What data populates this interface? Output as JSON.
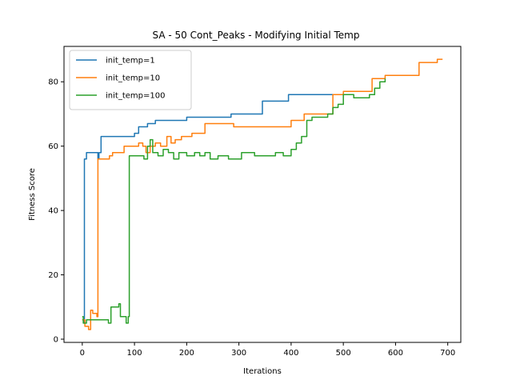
{
  "chart_data": {
    "type": "line",
    "title": "SA - 50 Cont_Peaks - Modifying Initial Temp",
    "xlabel": "Iterations",
    "ylabel": "Fitness Score",
    "xlim": [
      -35,
      725
    ],
    "ylim": [
      -1,
      91
    ],
    "xticks": [
      0,
      100,
      200,
      300,
      400,
      500,
      600,
      700
    ],
    "yticks": [
      0,
      20,
      40,
      60,
      80
    ],
    "grid": false,
    "legend_position": "upper left",
    "series": [
      {
        "name": "init_temp=1",
        "color": "#1f77b4",
        "step": true,
        "points": [
          [
            0,
            6
          ],
          [
            3,
            5
          ],
          [
            4,
            56
          ],
          [
            8,
            58
          ],
          [
            30,
            56
          ],
          [
            32,
            58
          ],
          [
            36,
            63
          ],
          [
            100,
            64
          ],
          [
            108,
            66
          ],
          [
            125,
            67
          ],
          [
            140,
            68
          ],
          [
            200,
            69
          ],
          [
            285,
            70
          ],
          [
            345,
            74
          ],
          [
            395,
            76
          ],
          [
            480,
            76
          ],
          [
            510,
            76
          ]
        ]
      },
      {
        "name": "init_temp=10",
        "color": "#ff7f0e",
        "step": true,
        "points": [
          [
            0,
            6
          ],
          [
            5,
            4
          ],
          [
            12,
            3
          ],
          [
            16,
            9
          ],
          [
            20,
            8
          ],
          [
            28,
            7
          ],
          [
            30,
            56
          ],
          [
            40,
            56
          ],
          [
            52,
            57
          ],
          [
            58,
            58
          ],
          [
            80,
            60
          ],
          [
            100,
            60
          ],
          [
            108,
            61
          ],
          [
            116,
            60
          ],
          [
            122,
            58
          ],
          [
            130,
            60
          ],
          [
            140,
            61
          ],
          [
            150,
            60
          ],
          [
            162,
            63
          ],
          [
            170,
            61
          ],
          [
            178,
            62
          ],
          [
            190,
            63
          ],
          [
            210,
            64
          ],
          [
            235,
            67
          ],
          [
            270,
            67
          ],
          [
            290,
            66
          ],
          [
            400,
            68
          ],
          [
            425,
            70
          ],
          [
            480,
            76
          ],
          [
            500,
            77
          ],
          [
            555,
            81
          ],
          [
            580,
            82
          ],
          [
            595,
            82
          ],
          [
            645,
            86
          ],
          [
            665,
            86
          ],
          [
            680,
            87
          ],
          [
            690,
            87
          ]
        ]
      },
      {
        "name": "init_temp=100",
        "color": "#2ca02c",
        "step": true,
        "points": [
          [
            0,
            7
          ],
          [
            2,
            5
          ],
          [
            8,
            6
          ],
          [
            30,
            6
          ],
          [
            35,
            6
          ],
          [
            50,
            5
          ],
          [
            55,
            10
          ],
          [
            70,
            11
          ],
          [
            73,
            7
          ],
          [
            84,
            5
          ],
          [
            88,
            7
          ],
          [
            90,
            57
          ],
          [
            110,
            57
          ],
          [
            118,
            56
          ],
          [
            125,
            60
          ],
          [
            130,
            62
          ],
          [
            135,
            58
          ],
          [
            145,
            57
          ],
          [
            155,
            59
          ],
          [
            165,
            58
          ],
          [
            175,
            56
          ],
          [
            185,
            58
          ],
          [
            200,
            57
          ],
          [
            215,
            58
          ],
          [
            225,
            57
          ],
          [
            235,
            58
          ],
          [
            245,
            56
          ],
          [
            260,
            57
          ],
          [
            280,
            56
          ],
          [
            305,
            58
          ],
          [
            330,
            57
          ],
          [
            370,
            58
          ],
          [
            385,
            57
          ],
          [
            400,
            59
          ],
          [
            410,
            61
          ],
          [
            420,
            63
          ],
          [
            430,
            68
          ],
          [
            440,
            69
          ],
          [
            470,
            70
          ],
          [
            480,
            72
          ],
          [
            490,
            73
          ],
          [
            500,
            76
          ],
          [
            520,
            75
          ],
          [
            535,
            75
          ],
          [
            550,
            76
          ],
          [
            560,
            78
          ],
          [
            570,
            80
          ],
          [
            580,
            81
          ]
        ]
      }
    ]
  }
}
